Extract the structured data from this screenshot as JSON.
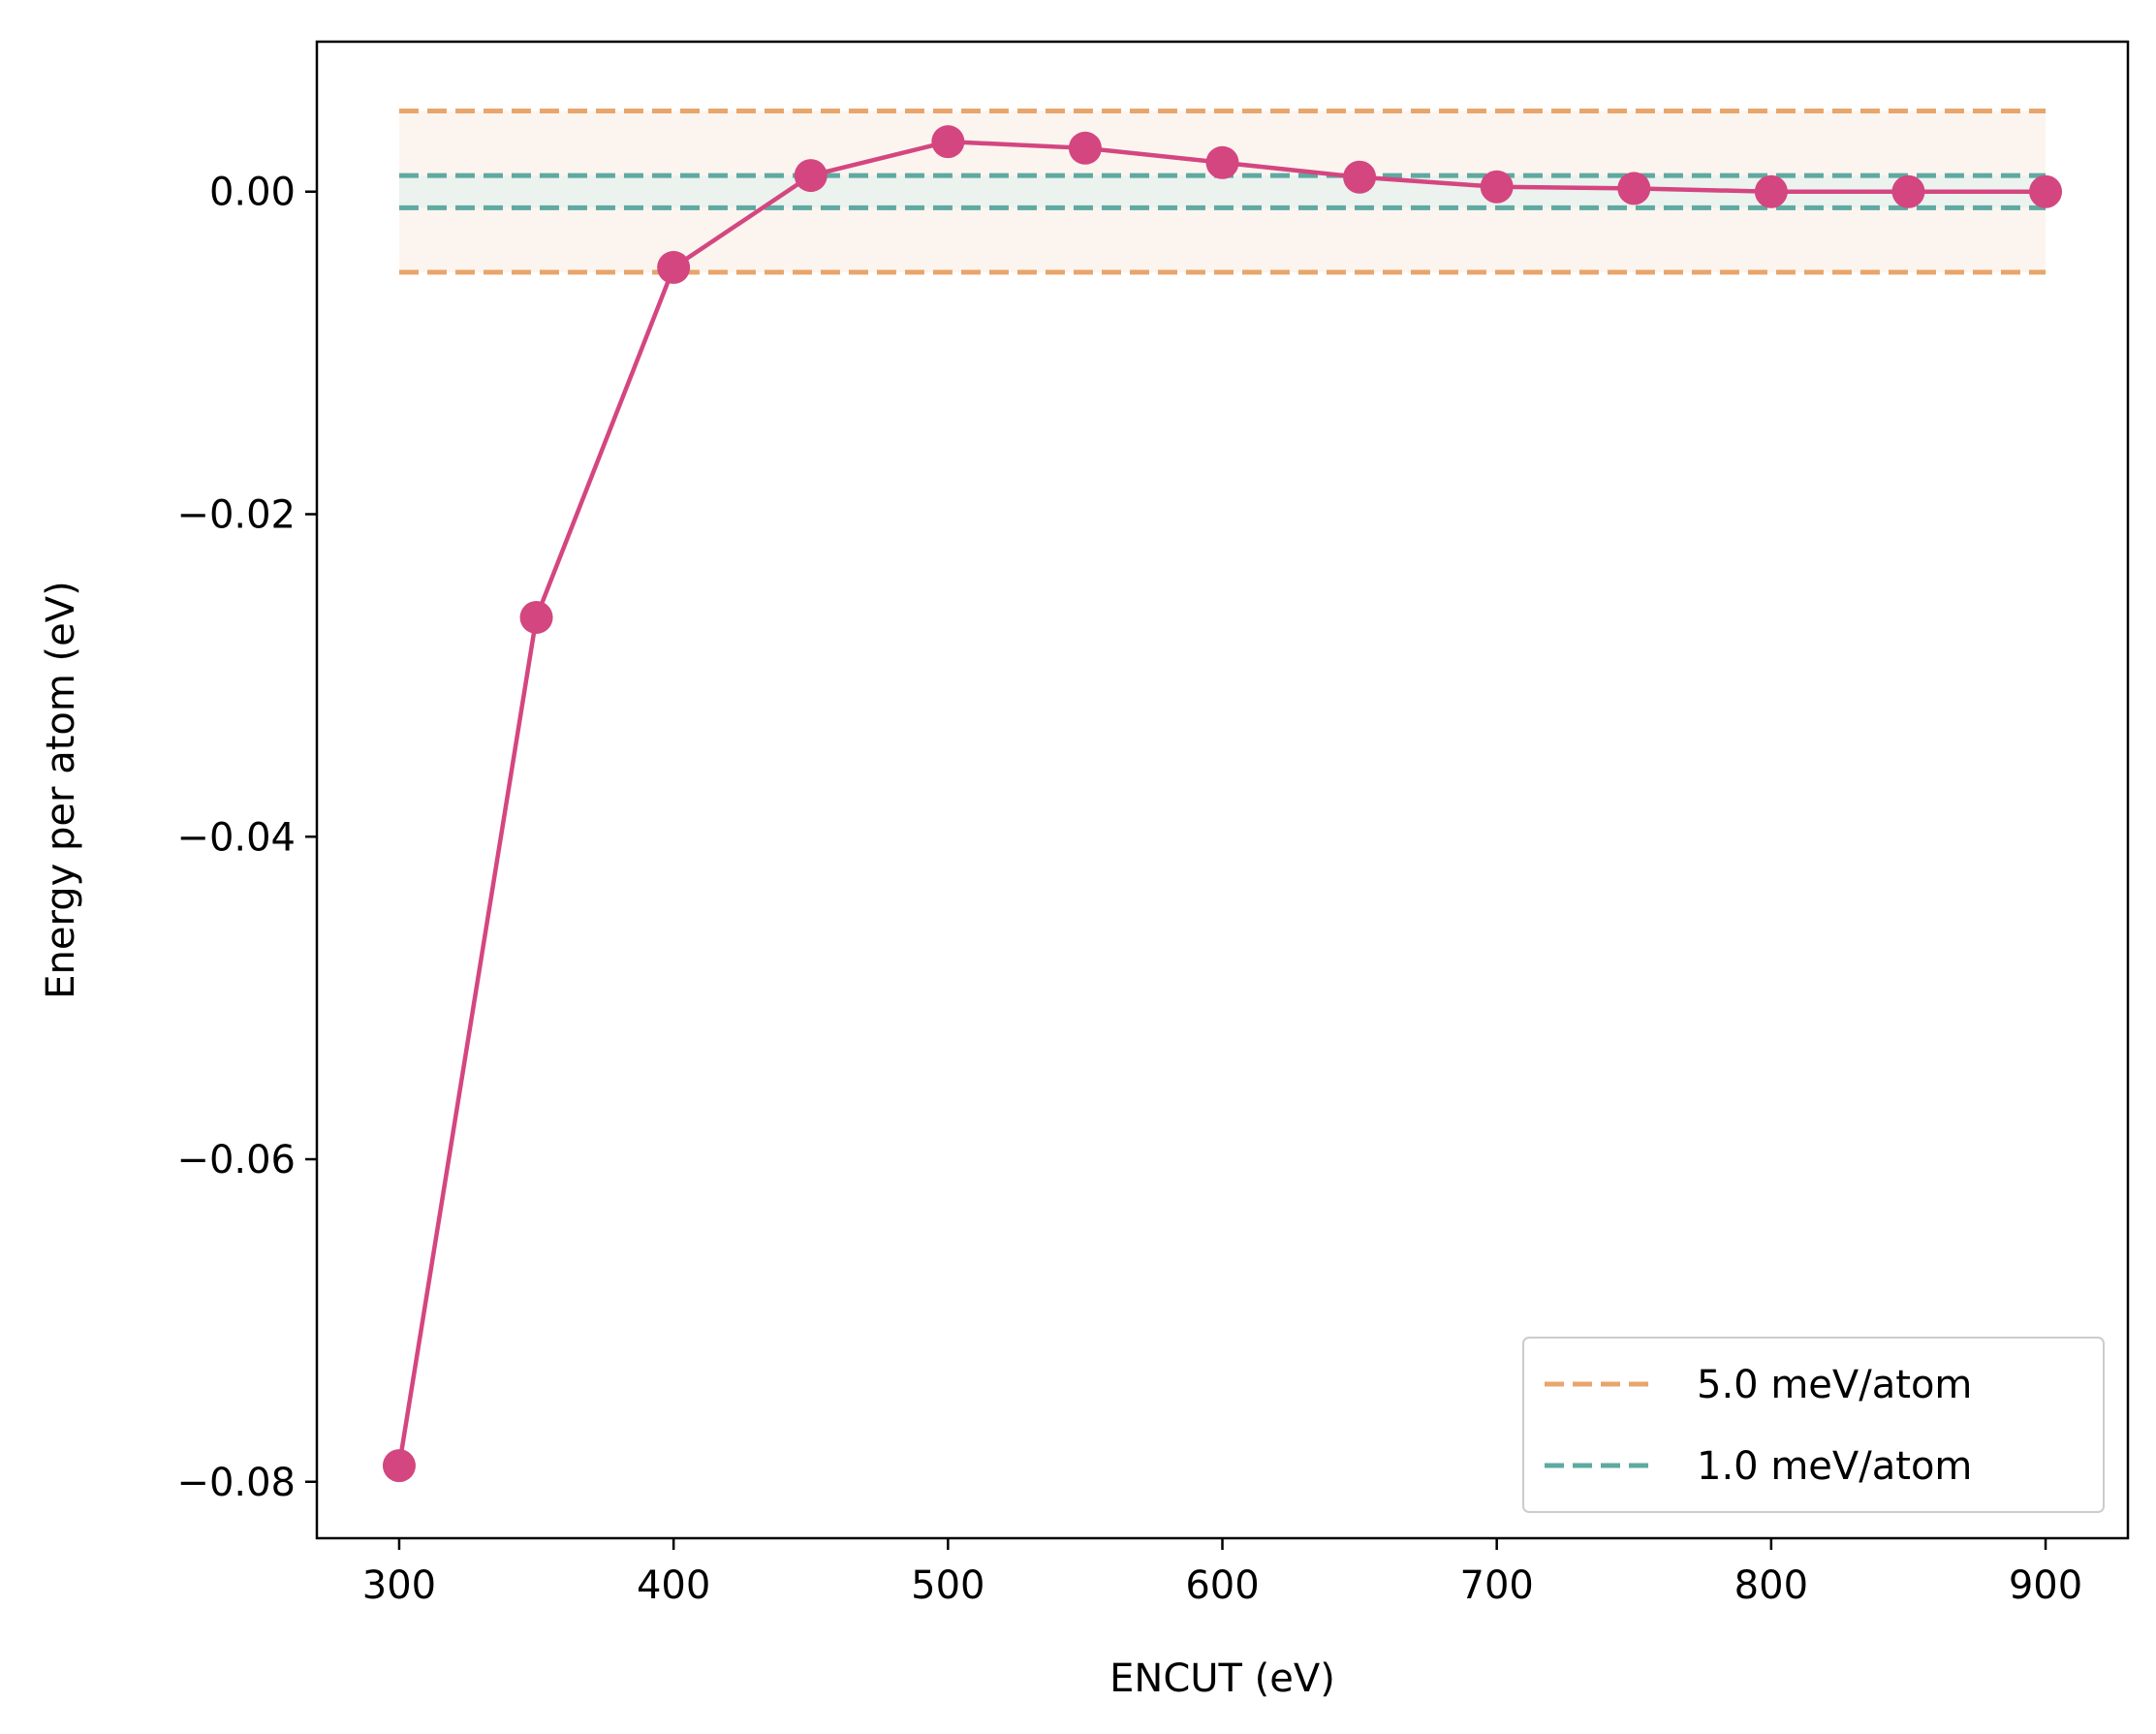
{
  "chart_data": {
    "type": "line",
    "xlabel": "ENCUT (eV)",
    "ylabel": "Energy per atom (eV)",
    "xlim": [
      270,
      930
    ],
    "ylim": [
      -0.0835,
      0.0093
    ],
    "x_ticks": [
      300,
      400,
      500,
      600,
      700,
      800,
      900
    ],
    "y_ticks": [
      0.0,
      -0.02,
      -0.04,
      -0.06,
      -0.08
    ],
    "y_tick_labels": [
      "0.00",
      "−0.02",
      "−0.04",
      "−0.06",
      "−0.08"
    ],
    "grid": false,
    "series": [
      {
        "color": "#d44680",
        "marker": "circle",
        "x": [
          300,
          350,
          400,
          450,
          500,
          550,
          600,
          650,
          700,
          750,
          800,
          850,
          900
        ],
        "y": [
          -0.079,
          -0.0264,
          -0.0047,
          0.001,
          0.0031,
          0.0027,
          0.0018,
          0.0009,
          0.0003,
          0.0002,
          0.0,
          0.0,
          0.0
        ]
      }
    ],
    "thresholds": [
      {
        "name": "5.0 meV/atom",
        "value": 0.005,
        "x_range": [
          300,
          900
        ],
        "color": "#e8a56c",
        "band_fill": "#fbf1e8"
      },
      {
        "name": "1.0 meV/atom",
        "value": 0.001,
        "x_range": [
          300,
          900
        ],
        "color": "#5ea9a0",
        "band_fill": "#e6f1ee"
      }
    ],
    "legend_position": "lower-right"
  }
}
